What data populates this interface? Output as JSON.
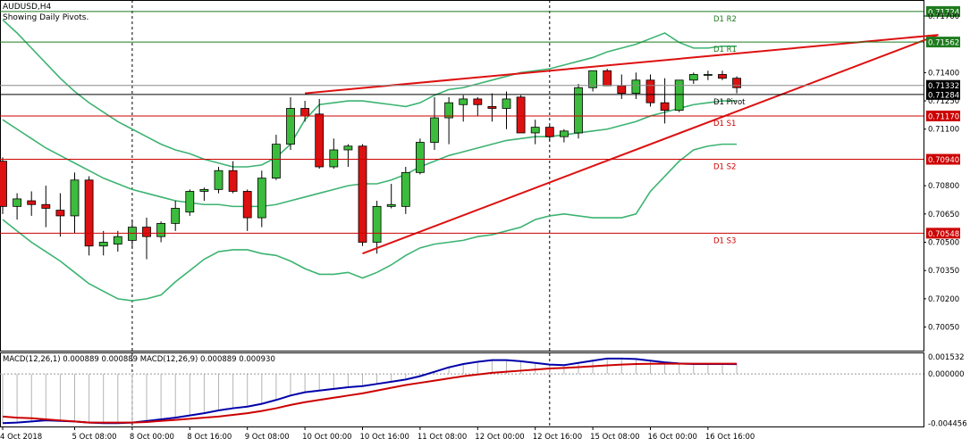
{
  "header": {
    "symbol": "AUDUSD,H4",
    "subtitle": "Showing Daily Pivots."
  },
  "macd_header": "MACD(12,26,1) 0.000889 0.000889 MACD(12,26,9) 0.000889 0.000930",
  "colors": {
    "bull": "#3cbc3c",
    "bear": "#dd1111",
    "bollinger": "#3cb371",
    "pivot_resistance": "#1e7b1e",
    "pivot_support": "#cc0000",
    "pivot_line": "#000000",
    "trendline": "#dd1111",
    "macd_main": "#0000aa",
    "macd_signal": "#cc0000",
    "histogram": "#b4b4b4"
  },
  "chart_data": [
    {
      "type": "candlestick",
      "symbol": "AUDUSD",
      "timeframe": "H4",
      "ylim": [
        0.69925,
        0.71785
      ],
      "y_ticks": [
        "0.71700",
        "0.71400",
        "0.71250",
        "0.71100",
        "0.70800",
        "0.70650",
        "0.70500",
        "0.70350",
        "0.70200",
        "0.70050"
      ],
      "x_ticks": [
        {
          "i": 0,
          "label": "4 Oct 2018"
        },
        {
          "i": 5,
          "label": "5 Oct 08:00"
        },
        {
          "i": 9,
          "label": "8 Oct 00:00"
        },
        {
          "i": 13,
          "label": "8 Oct 16:00"
        },
        {
          "i": 17,
          "label": "9 Oct 08:00"
        },
        {
          "i": 21,
          "label": "10 Oct 00:00"
        },
        {
          "i": 25,
          "label": "10 Oct 16:00"
        },
        {
          "i": 29,
          "label": "11 Oct 08:00"
        },
        {
          "i": 33,
          "label": "12 Oct 00:00"
        },
        {
          "i": 37,
          "label": "12 Oct 16:00"
        },
        {
          "i": 41,
          "label": "15 Oct 08:00"
        },
        {
          "i": 45,
          "label": "16 Oct 00:00"
        },
        {
          "i": 49,
          "label": "16 Oct 16:00"
        }
      ],
      "candles": [
        {
          "o": 0.7093,
          "h": 0.7095,
          "l": 0.7065,
          "c": 0.7069
        },
        {
          "o": 0.7069,
          "h": 0.7076,
          "l": 0.7062,
          "c": 0.7073
        },
        {
          "o": 0.7072,
          "h": 0.7077,
          "l": 0.7064,
          "c": 0.707
        },
        {
          "o": 0.707,
          "h": 0.708,
          "l": 0.7058,
          "c": 0.7068
        },
        {
          "o": 0.7067,
          "h": 0.7076,
          "l": 0.7053,
          "c": 0.7064
        },
        {
          "o": 0.7064,
          "h": 0.7087,
          "l": 0.7055,
          "c": 0.7083
        },
        {
          "o": 0.7083,
          "h": 0.7085,
          "l": 0.7043,
          "c": 0.7048
        },
        {
          "o": 0.7048,
          "h": 0.7056,
          "l": 0.7043,
          "c": 0.705
        },
        {
          "o": 0.7049,
          "h": 0.7056,
          "l": 0.7045,
          "c": 0.7053
        },
        {
          "o": 0.7051,
          "h": 0.7062,
          "l": 0.7047,
          "c": 0.7058
        },
        {
          "o": 0.7058,
          "h": 0.7063,
          "l": 0.7041,
          "c": 0.7053
        },
        {
          "o": 0.7053,
          "h": 0.7061,
          "l": 0.705,
          "c": 0.706
        },
        {
          "o": 0.706,
          "h": 0.7072,
          "l": 0.7056,
          "c": 0.7068
        },
        {
          "o": 0.7066,
          "h": 0.7078,
          "l": 0.7064,
          "c": 0.7077
        },
        {
          "o": 0.7077,
          "h": 0.7079,
          "l": 0.7072,
          "c": 0.7078
        },
        {
          "o": 0.7078,
          "h": 0.709,
          "l": 0.7076,
          "c": 0.7088
        },
        {
          "o": 0.7088,
          "h": 0.7093,
          "l": 0.7076,
          "c": 0.7077
        },
        {
          "o": 0.7077,
          "h": 0.7078,
          "l": 0.7056,
          "c": 0.7063
        },
        {
          "o": 0.7063,
          "h": 0.7088,
          "l": 0.7058,
          "c": 0.7084
        },
        {
          "o": 0.7084,
          "h": 0.7107,
          "l": 0.7083,
          "c": 0.7102
        },
        {
          "o": 0.7102,
          "h": 0.7127,
          "l": 0.7099,
          "c": 0.7121
        },
        {
          "o": 0.7121,
          "h": 0.7125,
          "l": 0.7114,
          "c": 0.7117
        },
        {
          "o": 0.7118,
          "h": 0.7126,
          "l": 0.7089,
          "c": 0.709
        },
        {
          "o": 0.709,
          "h": 0.7105,
          "l": 0.7089,
          "c": 0.7099
        },
        {
          "o": 0.7099,
          "h": 0.7102,
          "l": 0.709,
          "c": 0.7101
        },
        {
          "o": 0.7101,
          "h": 0.7102,
          "l": 0.7048,
          "c": 0.705
        },
        {
          "o": 0.705,
          "h": 0.7072,
          "l": 0.7044,
          "c": 0.7069
        },
        {
          "o": 0.7069,
          "h": 0.7081,
          "l": 0.7068,
          "c": 0.707
        },
        {
          "o": 0.7069,
          "h": 0.709,
          "l": 0.7065,
          "c": 0.7087
        },
        {
          "o": 0.7087,
          "h": 0.7105,
          "l": 0.7086,
          "c": 0.7103
        },
        {
          "o": 0.7103,
          "h": 0.7127,
          "l": 0.7099,
          "c": 0.7116
        },
        {
          "o": 0.7116,
          "h": 0.7127,
          "l": 0.7102,
          "c": 0.7124
        },
        {
          "o": 0.7123,
          "h": 0.7128,
          "l": 0.7114,
          "c": 0.7126
        },
        {
          "o": 0.7126,
          "h": 0.7127,
          "l": 0.7117,
          "c": 0.7123
        },
        {
          "o": 0.7122,
          "h": 0.7129,
          "l": 0.7114,
          "c": 0.7121
        },
        {
          "o": 0.7121,
          "h": 0.713,
          "l": 0.711,
          "c": 0.7126
        },
        {
          "o": 0.7127,
          "h": 0.7128,
          "l": 0.7108,
          "c": 0.7108
        },
        {
          "o": 0.7108,
          "h": 0.7115,
          "l": 0.7102,
          "c": 0.7111
        },
        {
          "o": 0.7111,
          "h": 0.7112,
          "l": 0.7104,
          "c": 0.7106
        },
        {
          "o": 0.7106,
          "h": 0.711,
          "l": 0.7103,
          "c": 0.7109
        },
        {
          "o": 0.7108,
          "h": 0.7134,
          "l": 0.7105,
          "c": 0.7132
        },
        {
          "o": 0.7132,
          "h": 0.7141,
          "l": 0.713,
          "c": 0.7141
        },
        {
          "o": 0.7141,
          "h": 0.7142,
          "l": 0.7133,
          "c": 0.7133
        },
        {
          "o": 0.7133,
          "h": 0.7139,
          "l": 0.7126,
          "c": 0.7129
        },
        {
          "o": 0.7129,
          "h": 0.714,
          "l": 0.7126,
          "c": 0.7136
        },
        {
          "o": 0.7136,
          "h": 0.7139,
          "l": 0.7122,
          "c": 0.7124
        },
        {
          "o": 0.7124,
          "h": 0.7137,
          "l": 0.7113,
          "c": 0.712
        },
        {
          "o": 0.712,
          "h": 0.7136,
          "l": 0.7119,
          "c": 0.7136
        },
        {
          "o": 0.7136,
          "h": 0.714,
          "l": 0.7134,
          "c": 0.7139
        },
        {
          "o": 0.7139,
          "h": 0.7141,
          "l": 0.7136,
          "c": 0.7139
        },
        {
          "o": 0.7139,
          "h": 0.7141,
          "l": 0.7136,
          "c": 0.7137
        },
        {
          "o": 0.7137,
          "h": 0.7138,
          "l": 0.7129,
          "c": 0.7132
        }
      ],
      "bollinger": {
        "upper": [
          0.7168,
          0.7161,
          0.7153,
          0.7145,
          0.7137,
          0.713,
          0.7124,
          0.7119,
          0.7114,
          0.711,
          0.7106,
          0.7102,
          0.7099,
          0.7097,
          0.7094,
          0.7092,
          0.709,
          0.709,
          0.7091,
          0.7095,
          0.7102,
          0.7115,
          0.7123,
          0.7124,
          0.7125,
          0.7125,
          0.7124,
          0.7123,
          0.7122,
          0.7124,
          0.7128,
          0.7131,
          0.7132,
          0.7134,
          0.7136,
          0.7138,
          0.714,
          0.7141,
          0.7142,
          0.7144,
          0.7146,
          0.7148,
          0.7151,
          0.7153,
          0.7155,
          0.7158,
          0.7161,
          0.7156,
          0.7153,
          0.7153,
          0.7154,
          0.7154
        ],
        "middle": [
          0.7115,
          0.711,
          0.7105,
          0.71,
          0.7096,
          0.7092,
          0.7088,
          0.7084,
          0.7081,
          0.7078,
          0.7076,
          0.7074,
          0.7072,
          0.7071,
          0.707,
          0.707,
          0.7069,
          0.7069,
          0.7069,
          0.707,
          0.7072,
          0.7074,
          0.7076,
          0.7078,
          0.708,
          0.7081,
          0.7081,
          0.7083,
          0.7086,
          0.709,
          0.7093,
          0.7096,
          0.7098,
          0.71,
          0.7102,
          0.7104,
          0.7105,
          0.7106,
          0.7106,
          0.7107,
          0.7108,
          0.7109,
          0.711,
          0.7112,
          0.7114,
          0.7117,
          0.7119,
          0.7121,
          0.7123,
          0.7124,
          0.7125,
          0.7125
        ],
        "lower": [
          0.7062,
          0.7056,
          0.705,
          0.7045,
          0.704,
          0.7034,
          0.7028,
          0.7024,
          0.702,
          0.7019,
          0.702,
          0.7022,
          0.7029,
          0.7035,
          0.7041,
          0.7045,
          0.7046,
          0.7046,
          0.7044,
          0.7043,
          0.704,
          0.7036,
          0.7033,
          0.7033,
          0.7034,
          0.7031,
          0.7034,
          0.7038,
          0.7043,
          0.7047,
          0.7049,
          0.705,
          0.7051,
          0.7053,
          0.7054,
          0.7056,
          0.7058,
          0.7062,
          0.7064,
          0.7065,
          0.7064,
          0.7063,
          0.7063,
          0.7063,
          0.7065,
          0.7077,
          0.7085,
          0.7093,
          0.7099,
          0.7101,
          0.7102,
          0.7102
        ]
      },
      "pivots": [
        {
          "label": "D1 R2",
          "value": 0.71724,
          "tag": "0.71724",
          "kind": "resistance"
        },
        {
          "label": "D1 R1",
          "value": 0.71562,
          "tag": "0.71562",
          "kind": "resistance"
        },
        {
          "label": "D1 Pivot",
          "value": 0.71284,
          "tag": "0.71284",
          "kind": "pivot"
        },
        {
          "label": "D1 S1",
          "value": 0.7117,
          "tag": "0.71170",
          "kind": "support"
        },
        {
          "label": "D1 S2",
          "value": 0.7094,
          "tag": "0.70940",
          "kind": "support"
        },
        {
          "label": "D1 S3",
          "value": 0.70548,
          "tag": "0.70548",
          "kind": "support"
        }
      ],
      "current_price": {
        "value": 0.71332,
        "tag": "0.71332"
      },
      "trendlines": [
        {
          "from": {
            "i": 21,
            "v": 0.7129
          },
          "to": {
            "i": 65,
            "v": 0.716
          }
        },
        {
          "from": {
            "i": 25,
            "v": 0.7044
          },
          "to": {
            "i": 65,
            "v": 0.716
          }
        }
      ],
      "vlines": [
        9,
        38
      ]
    },
    {
      "type": "line",
      "name": "MACD",
      "ylim": [
        -0.00475,
        0.00195
      ],
      "y_ticks": [
        "0.001532",
        "0.000000",
        "-0.004456"
      ],
      "macd": [
        -0.00445,
        -0.0044,
        -0.0043,
        -0.0042,
        -0.00425,
        -0.0043,
        -0.0044,
        -0.00445,
        -0.00445,
        -0.0044,
        -0.00425,
        -0.0041,
        -0.00395,
        -0.00375,
        -0.00355,
        -0.0033,
        -0.0031,
        -0.00295,
        -0.0027,
        -0.00235,
        -0.00195,
        -0.00165,
        -0.0015,
        -0.00135,
        -0.0012,
        -0.0011,
        -0.0009,
        -0.0007,
        -0.0005,
        -0.0002,
        0.0002,
        0.0006,
        0.0009,
        0.0011,
        0.00125,
        0.00125,
        0.00115,
        0.001,
        0.00085,
        0.0008,
        0.001,
        0.0012,
        0.0014,
        0.0014,
        0.00135,
        0.0012,
        0.00105,
        0.00095,
        0.0009,
        0.0009,
        0.0009,
        0.00089
      ],
      "signal": [
        -0.00385,
        -0.00395,
        -0.004,
        -0.0041,
        -0.0042,
        -0.0043,
        -0.0044,
        -0.0044,
        -0.0044,
        -0.0044,
        -0.00435,
        -0.00425,
        -0.00415,
        -0.00405,
        -0.00395,
        -0.00385,
        -0.0037,
        -0.00355,
        -0.00335,
        -0.0031,
        -0.0028,
        -0.00255,
        -0.00235,
        -0.00215,
        -0.00195,
        -0.00175,
        -0.0015,
        -0.00125,
        -0.001,
        -0.0008,
        -0.0006,
        -0.0004,
        -0.0002,
        -5e-05,
        0.0001,
        0.0002,
        0.0003,
        0.0004,
        0.0005,
        0.00055,
        0.00062,
        0.0007,
        0.00078,
        0.00085,
        0.0009,
        0.00092,
        0.00093,
        0.00093,
        0.00093,
        0.00093,
        0.00093,
        0.00093
      ]
    }
  ]
}
